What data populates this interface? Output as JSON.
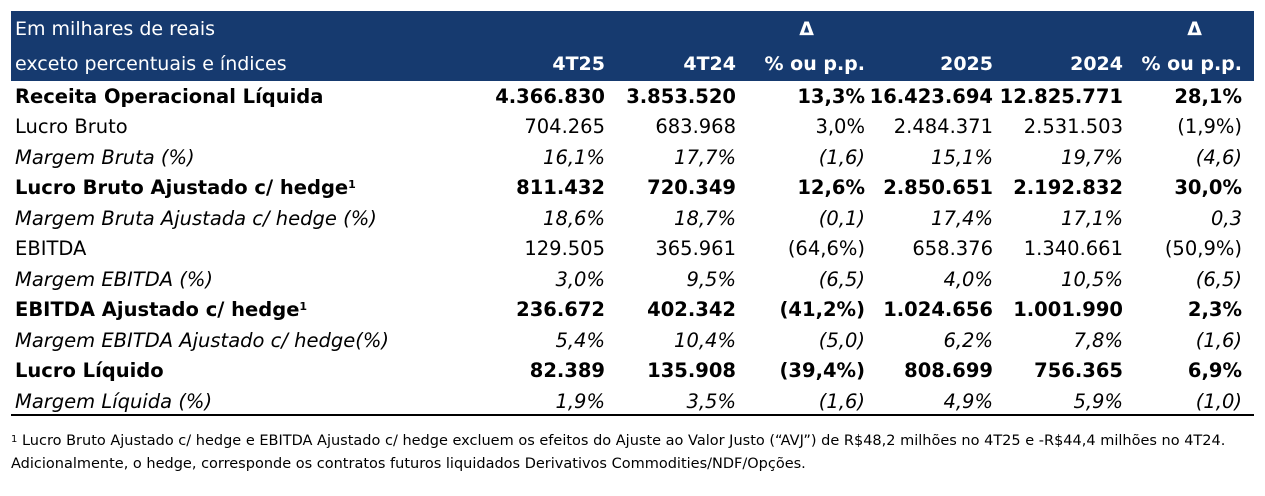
{
  "header": {
    "label_line1": "Em milhares de reais",
    "label_line2": "exceto percentuais e índices",
    "delta_symbol_1": "Δ",
    "delta_symbol_2": "Δ",
    "columns": [
      "4T25",
      "4T24",
      "% ou p.p.",
      "2025",
      "2024",
      "% ou p.p."
    ]
  },
  "rows": [
    {
      "label": "Receita Operacional Líquida",
      "sup": "",
      "values": [
        "4.366.830",
        "3.853.520",
        "13,3%",
        "16.423.694",
        "12.825.771",
        "28,1%"
      ]
    },
    {
      "label": "Lucro Bruto",
      "sup": "",
      "values": [
        "704.265",
        "683.968",
        "3,0%",
        "2.484.371",
        "2.531.503",
        "(1,9%)"
      ]
    },
    {
      "label": "Margem Bruta (%)",
      "sup": "",
      "values": [
        "16,1%",
        "17,7%",
        "(1,6)",
        "15,1%",
        "19,7%",
        "(4,6)"
      ]
    },
    {
      "label": "Lucro Bruto Ajustado c/ hedge",
      "sup": "1",
      "values": [
        "811.432",
        "720.349",
        "12,6%",
        "2.850.651",
        "2.192.832",
        "30,0%"
      ]
    },
    {
      "label": "Margem Bruta Ajustada c/ hedge (%)",
      "sup": "",
      "values": [
        "18,6%",
        "18,7%",
        "(0,1)",
        "17,4%",
        "17,1%",
        "0,3"
      ]
    },
    {
      "label": "EBITDA",
      "sup": "",
      "values": [
        "129.505",
        "365.961",
        "(64,6%)",
        "658.376",
        "1.340.661",
        "(50,9%)"
      ]
    },
    {
      "label": "Margem EBITDA (%)",
      "sup": "",
      "values": [
        "3,0%",
        "9,5%",
        "(6,5)",
        "4,0%",
        "10,5%",
        "(6,5)"
      ]
    },
    {
      "label": "EBITDA Ajustado c/ hedge",
      "sup": "1",
      "values": [
        "236.672",
        "402.342",
        "(41,2%)",
        "1.024.656",
        "1.001.990",
        "2,3%"
      ]
    },
    {
      "label": "Margem EBITDA Ajustado c/ hedge(%)",
      "sup": "",
      "values": [
        "5,4%",
        "10,4%",
        "(5,0)",
        "6,2%",
        "7,8%",
        "(1,6)"
      ]
    },
    {
      "label": "Lucro Líquido",
      "sup": "",
      "values": [
        "82.389",
        "135.908",
        "(39,4%)",
        "808.699",
        "756.365",
        "6,9%"
      ]
    },
    {
      "label": "Margem Líquida (%)",
      "sup": "",
      "values": [
        "1,9%",
        "3,5%",
        "(1,6)",
        "4,9%",
        "5,9%",
        "(1,0)"
      ]
    }
  ],
  "footnote": {
    "marker": "1",
    "text": "Lucro Bruto Ajustado c/ hedge e EBITDA Ajustado c/ hedge excluem os efeitos do Ajuste ao Valor Justo (“AVJ”) de R$48,2 milhões no 4T25 e -R$44,4 milhões no 4T24. Adicionalmente, o hedge, corresponde os contratos futuros liquidados Derivativos Commodities/NDF/Opções."
  }
}
